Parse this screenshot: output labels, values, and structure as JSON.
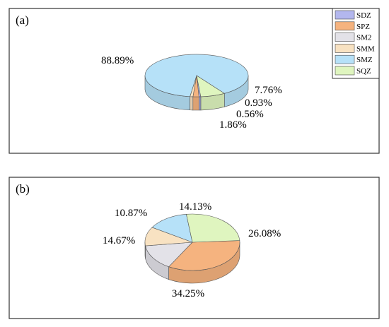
{
  "chart_data": [
    {
      "type": "pie",
      "panel_label": "(a)",
      "legend_position": "top-right",
      "slices": [
        {
          "label": "SDZ",
          "value": 0.56,
          "text": "0.56%",
          "color": "#b3b7ee"
        },
        {
          "label": "SPZ",
          "value": 1.86,
          "text": "1.86%",
          "color": "#f5b37f"
        },
        {
          "label": "SM2",
          "value": 0.0,
          "text": "",
          "color": "#e3e2e8"
        },
        {
          "label": "SMM",
          "value": 0.93,
          "text": "0.93%",
          "color": "#f8e2c2"
        },
        {
          "label": "SMZ",
          "value": 88.89,
          "text": "88.89%",
          "color": "#b6e1f8"
        },
        {
          "label": "SQZ",
          "value": 7.76,
          "text": "7.76%",
          "color": "#dff5bf"
        }
      ]
    },
    {
      "type": "pie",
      "panel_label": "(b)",
      "legend_position": "none",
      "slices": [
        {
          "label": "SDZ",
          "value": 0.0,
          "text": "",
          "color": "#b3b7ee"
        },
        {
          "label": "SPZ",
          "value": 34.25,
          "text": "34.25%",
          "color": "#f5b37f"
        },
        {
          "label": "SM2",
          "value": 14.67,
          "text": "14.67%",
          "color": "#e3e2e8"
        },
        {
          "label": "SMM",
          "value": 10.87,
          "text": "10.87%",
          "color": "#f8e2c2"
        },
        {
          "label": "SMZ",
          "value": 14.13,
          "text": "14.13%",
          "color": "#b6e1f8"
        },
        {
          "label": "SQZ",
          "value": 26.08,
          "text": "26.08%",
          "color": "#dff5bf"
        }
      ]
    }
  ]
}
